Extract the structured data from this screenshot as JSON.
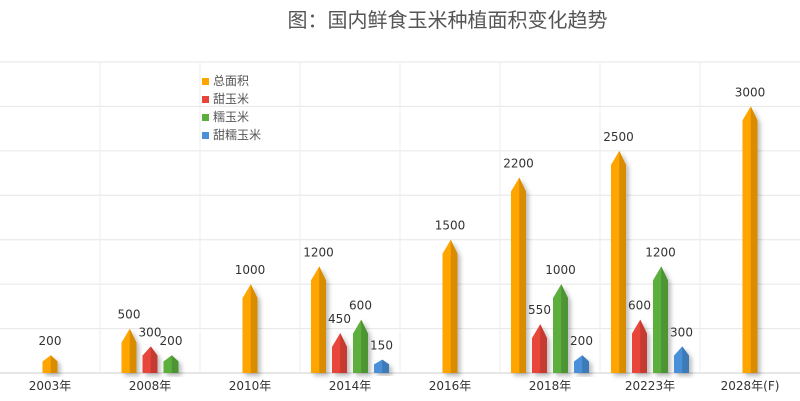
{
  "chart_data": {
    "type": "bar",
    "title": "图：国内鲜食玉米种植面积变化趋势",
    "xlabel": "",
    "ylabel": "",
    "ylim": [
      0,
      3500
    ],
    "grid": true,
    "legend_position": "top-left",
    "categories": [
      "2003年",
      "2008年",
      "2010年",
      "2014年",
      "2016年",
      "2018年",
      "20223年",
      "2028年(F)"
    ],
    "series": [
      {
        "name": "总面积",
        "color": "#FFA500",
        "values": [
          200,
          500,
          1000,
          1200,
          1500,
          2200,
          2500,
          3000
        ]
      },
      {
        "name": "甜玉米",
        "color": "#E8443A",
        "values": [
          null,
          300,
          null,
          450,
          null,
          550,
          600,
          null
        ]
      },
      {
        "name": "糯玉米",
        "color": "#5BAE3E",
        "values": [
          null,
          200,
          null,
          600,
          null,
          1000,
          1200,
          null
        ]
      },
      {
        "name": "甜糯玉米",
        "color": "#4A90D9",
        "values": [
          null,
          null,
          null,
          150,
          null,
          200,
          300,
          null
        ]
      }
    ]
  }
}
